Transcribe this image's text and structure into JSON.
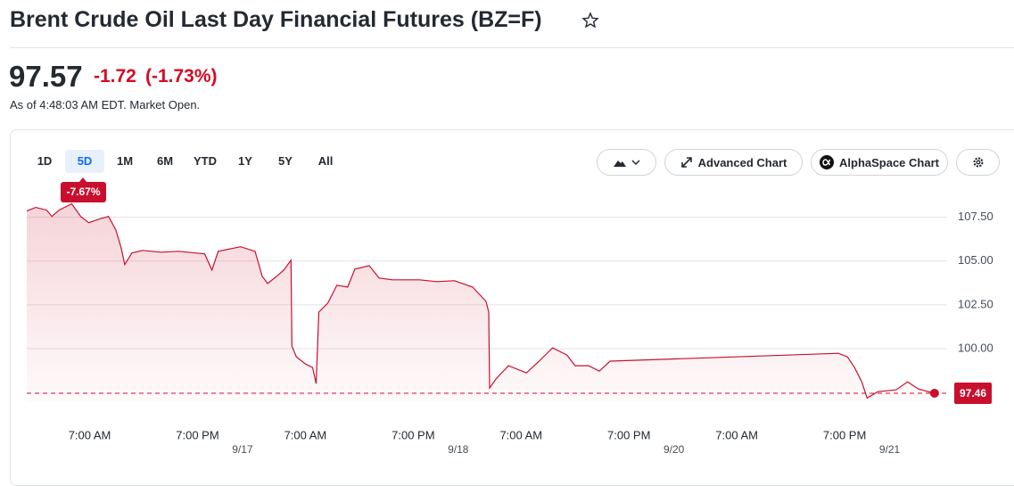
{
  "header": {
    "title": "Brent Crude Oil Last Day Financial Futures (BZ=F)",
    "price": "97.57",
    "change": "-1.72",
    "change_percent": "(-1.73%)",
    "as_of": "As of 4:48:03 AM EDT. Market Open."
  },
  "toolbar": {
    "ranges": [
      "1D",
      "5D",
      "1M",
      "6M",
      "YTD",
      "1Y",
      "5Y",
      "All"
    ],
    "selected_range": 1,
    "range_change": "-7.67%",
    "buttons": [
      "Advanced Chart",
      "AlphaSpace Chart"
    ]
  },
  "chart_data": {
    "type": "area",
    "color": "#c8102e",
    "x": [
      0,
      1.0,
      2.2,
      2.8,
      3.6,
      5.0,
      6.0,
      6.9,
      8.1,
      9.1,
      9.9,
      10.5,
      10.9,
      11.7,
      12.9,
      14.9,
      16.9,
      19.8,
      20.6,
      21.3,
      23.8,
      25.4,
      26.2,
      26.8,
      27.8,
      28.6,
      29.4,
      29.5,
      30.0,
      31.0,
      31.8,
      32.2,
      32.5,
      33.5,
      34.5,
      35.7,
      36.5,
      38.1,
      39.2,
      40.7,
      43.7,
      45.6,
      47.6,
      49.6,
      51.1,
      51.4,
      51.5,
      52.2,
      53.6,
      55.6,
      57.0,
      58.5,
      60.1,
      61.0,
      62.5,
      63.7,
      64.9,
      90.3,
      91.3,
      92.1,
      92.9,
      93.5,
      94.7,
      96.7,
      98.0,
      99.2,
      101.0
    ],
    "values": [
      107.86,
      108.06,
      107.91,
      107.55,
      107.91,
      108.27,
      107.55,
      107.19,
      107.4,
      107.55,
      106.79,
      105.77,
      104.8,
      105.46,
      105.61,
      105.51,
      105.56,
      105.41,
      104.49,
      105.56,
      105.82,
      105.56,
      104.13,
      103.72,
      104.13,
      104.49,
      105.05,
      100.15,
      99.54,
      99.13,
      98.93,
      98.01,
      102.09,
      102.6,
      103.62,
      103.52,
      104.54,
      104.74,
      104.03,
      103.93,
      103.93,
      103.83,
      103.88,
      103.52,
      102.7,
      102.09,
      97.76,
      98.27,
      99.03,
      98.62,
      99.29,
      100.05,
      99.64,
      99.03,
      99.03,
      98.72,
      99.29,
      99.74,
      99.54,
      98.93,
      98.11,
      97.19,
      97.55,
      97.65,
      98.11,
      97.7,
      97.46
    ],
    "xlim": [
      0,
      102.4
    ],
    "ylim": [
      97,
      108.5
    ],
    "xticks": [
      {
        "value": 7,
        "label": "7:00 AM"
      },
      {
        "value": 19,
        "label": "7:00 PM"
      },
      {
        "value": 31,
        "label": "7:00 AM"
      },
      {
        "value": 43,
        "label": "7:00 PM"
      },
      {
        "value": 55,
        "label": "7:00 AM"
      },
      {
        "value": 67,
        "label": "7:00 PM"
      },
      {
        "value": 79,
        "label": "7:00 AM"
      },
      {
        "value": 91,
        "label": "7:00 PM"
      }
    ],
    "date_ticks": [
      {
        "value": 24,
        "label": "9/17"
      },
      {
        "value": 48,
        "label": "9/18"
      },
      {
        "value": 72,
        "label": "9/20"
      },
      {
        "value": 96,
        "label": "9/21"
      }
    ],
    "yticks": [
      {
        "value": 100,
        "label": "100.00"
      },
      {
        "value": 102.5,
        "label": "102.50"
      },
      {
        "value": 105,
        "label": "105.00"
      },
      {
        "value": 107.5,
        "label": "107.50"
      }
    ],
    "grid": true
  }
}
